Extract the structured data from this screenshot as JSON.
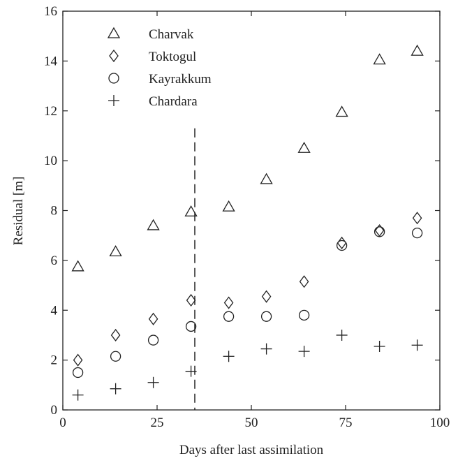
{
  "chart_data": {
    "type": "scatter",
    "xlabel": "Days after last assimilation",
    "ylabel": "Residual [m]",
    "xlim": [
      0,
      100
    ],
    "ylim": [
      0,
      16
    ],
    "xticks": [
      0,
      25,
      50,
      75,
      100
    ],
    "yticks": [
      0,
      2,
      4,
      6,
      8,
      10,
      12,
      14,
      16
    ],
    "grid": false,
    "legend_position": "top-left",
    "vertical_line": {
      "x": 35,
      "style": "dashed"
    },
    "series": [
      {
        "name": "Charvak",
        "marker": "triangle",
        "x": [
          4,
          14,
          24,
          34,
          44,
          54,
          64,
          74,
          84,
          94
        ],
        "y": [
          5.75,
          6.35,
          7.4,
          7.95,
          8.15,
          9.25,
          10.5,
          11.95,
          14.05,
          14.4
        ]
      },
      {
        "name": "Toktogul",
        "marker": "diamond",
        "x": [
          4,
          14,
          24,
          34,
          44,
          54,
          64,
          74,
          84,
          94
        ],
        "y": [
          2.0,
          3.0,
          3.65,
          4.4,
          4.3,
          4.55,
          5.15,
          6.7,
          7.2,
          7.7
        ]
      },
      {
        "name": "Kayrakkum",
        "marker": "circle",
        "x": [
          4,
          14,
          24,
          34,
          44,
          54,
          64,
          74,
          84,
          94
        ],
        "y": [
          1.5,
          2.15,
          2.8,
          3.35,
          3.75,
          3.75,
          3.8,
          6.6,
          7.15,
          7.1
        ]
      },
      {
        "name": "Chardara",
        "marker": "plus",
        "x": [
          4,
          14,
          24,
          34,
          44,
          54,
          64,
          74,
          84,
          94
        ],
        "y": [
          0.6,
          0.85,
          1.1,
          1.55,
          2.15,
          2.45,
          2.35,
          3.0,
          2.55,
          2.6
        ]
      }
    ]
  }
}
